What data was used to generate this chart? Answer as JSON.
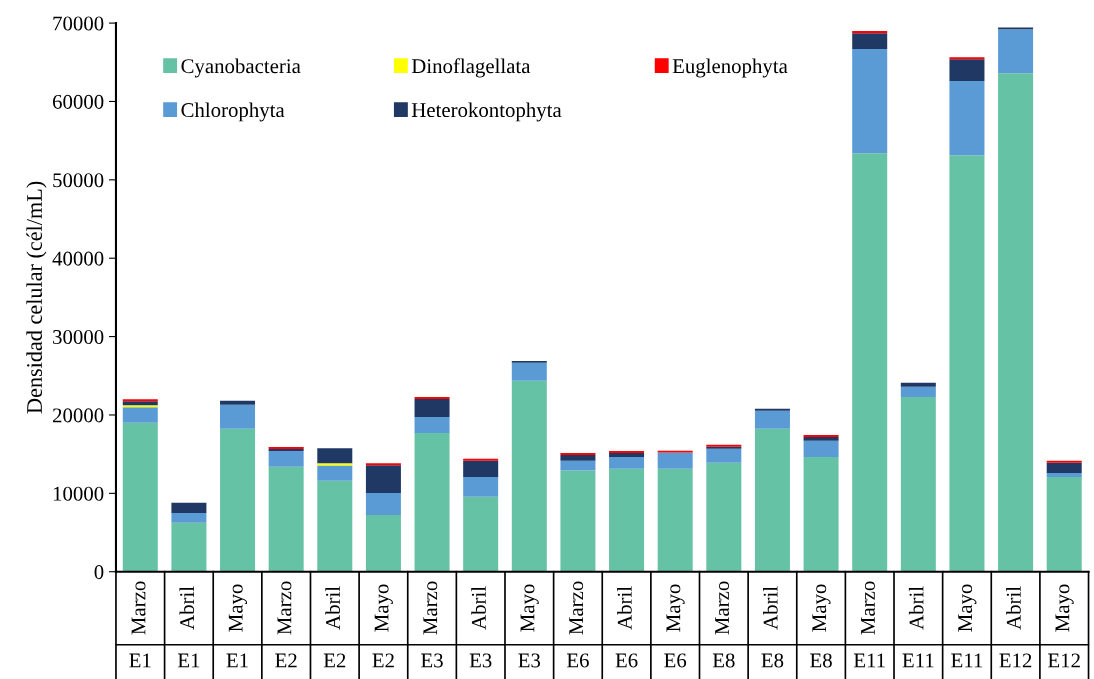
{
  "chart_data": {
    "type": "bar",
    "stacked": true,
    "ylabel": "Densidad celular (cél/mL)",
    "categories": [
      "Marzo\nE1",
      "Abril\nE1",
      "Mayo\nE1",
      "Marzo\nE2",
      "Abril\nE2",
      "Mayo\nE2",
      "Marzo\nE3",
      "Abril\nE3",
      "Mayo\nE3",
      "Marzo\nE6",
      "Abril\nE6",
      "Mayo\nE6",
      "Marzo\nE8",
      "Abril\nE8",
      "Mayo\nE8",
      "Marzo\nE11",
      "Abril\nE11",
      "Mayo\nE11",
      "Abril\nE12",
      "Mayo\nE12"
    ],
    "series": [
      {
        "name": "Cyanobacteria",
        "color": "#66c2a5",
        "values": [
          19000,
          6250,
          18250,
          13400,
          11600,
          7250,
          17700,
          9550,
          24350,
          12900,
          13150,
          13150,
          13900,
          18250,
          14650,
          53400,
          22300,
          53150,
          63600,
          12100
        ]
      },
      {
        "name": "Chlorophyta",
        "color": "#5b9bd5",
        "values": [
          2000,
          1250,
          3050,
          2000,
          1950,
          2800,
          2050,
          2550,
          2300,
          1250,
          1500,
          2050,
          1800,
          2300,
          2050,
          13300,
          1300,
          9450,
          5600,
          500
        ]
      },
      {
        "name": "Dinoflagellata",
        "color": "#ffff00",
        "values": [
          250,
          null,
          null,
          null,
          300,
          null,
          null,
          null,
          null,
          null,
          null,
          null,
          null,
          null,
          null,
          null,
          null,
          null,
          null,
          null
        ]
      },
      {
        "name": "Heterokontophyta",
        "color": "#203864",
        "values": [
          500,
          1300,
          500,
          250,
          1900,
          3550,
          2300,
          2050,
          250,
          750,
          500,
          null,
          250,
          250,
          500,
          2000,
          500,
          2800,
          250,
          1300
        ]
      },
      {
        "name": "Euglenophyta",
        "color": "#ff0000",
        "values": [
          250,
          null,
          null,
          250,
          null,
          250,
          250,
          250,
          null,
          250,
          250,
          250,
          250,
          null,
          250,
          300,
          null,
          250,
          null,
          250
        ]
      }
    ],
    "ylim": [
      0,
      70000
    ],
    "yticks": [
      0,
      10000,
      20000,
      30000,
      40000,
      50000,
      60000,
      70000
    ],
    "grid": false,
    "legend": "top left"
  }
}
